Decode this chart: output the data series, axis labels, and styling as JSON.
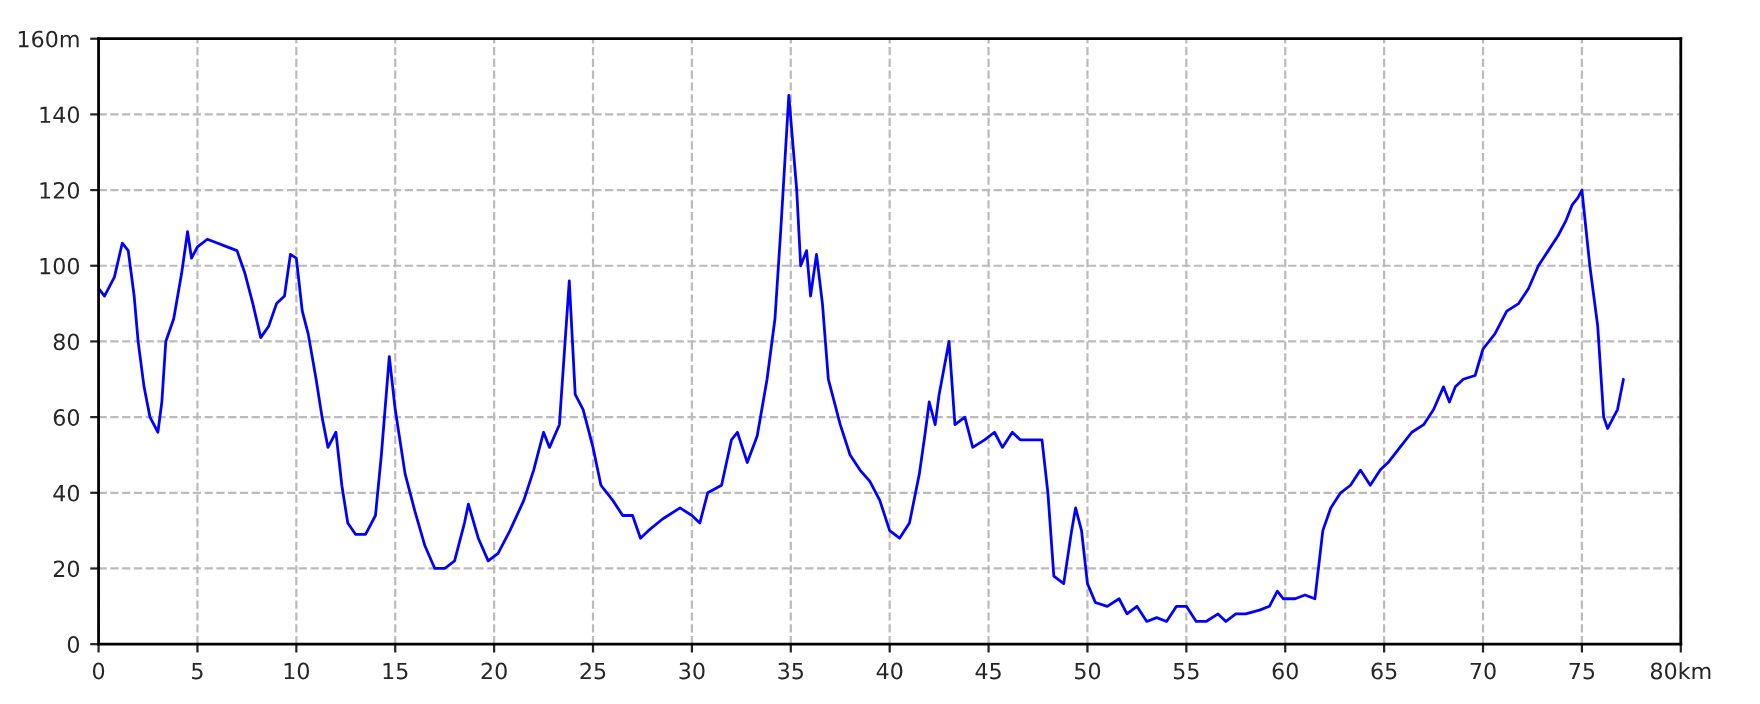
{
  "chart_data": {
    "type": "line",
    "x": [
      0,
      0.3,
      0.8,
      1.2,
      1.5,
      1.8,
      2.0,
      2.3,
      2.6,
      3.0,
      3.2,
      3.4,
      3.8,
      4.2,
      4.5,
      4.7,
      5.0,
      5.5,
      6.0,
      6.5,
      7.0,
      7.4,
      7.8,
      8.2,
      8.6,
      9.0,
      9.4,
      9.7,
      10.0,
      10.3,
      10.6,
      11.0,
      11.3,
      11.6,
      12.0,
      12.3,
      12.6,
      13.0,
      13.5,
      14.0,
      14.3,
      14.7,
      15.0,
      15.5,
      16.0,
      16.5,
      17.0,
      17.5,
      18.0,
      18.5,
      18.7,
      19.2,
      19.7,
      20.2,
      20.8,
      21.5,
      22.0,
      22.5,
      22.8,
      23.3,
      23.8,
      24.1,
      24.5,
      25.0,
      25.4,
      26.0,
      26.5,
      27.0,
      27.4,
      27.8,
      28.5,
      29.4,
      30.0,
      30.4,
      30.8,
      31.5,
      32.0,
      32.3,
      32.8,
      33.3,
      33.8,
      34.2,
      34.5,
      34.9,
      35.3,
      35.5,
      35.8,
      36.0,
      36.3,
      36.6,
      36.9,
      37.5,
      38.0,
      38.5,
      39.0,
      39.5,
      40.0,
      40.5,
      41.0,
      41.5,
      41.8,
      42.0,
      42.3,
      42.5,
      43.0,
      43.3,
      43.8,
      44.2,
      44.8,
      45.3,
      45.7,
      46.2,
      46.6,
      47.2,
      47.7,
      48.0,
      48.3,
      48.8,
      49.2,
      49.4,
      49.7,
      50.0,
      50.4,
      51.0,
      51.6,
      52.0,
      52.5,
      53.0,
      53.5,
      54.0,
      54.5,
      55.0,
      55.5,
      56.0,
      56.6,
      57.0,
      57.5,
      58.0,
      58.7,
      59.2,
      59.6,
      59.9,
      60.5,
      61.0,
      61.5,
      61.9,
      62.3,
      62.8,
      63.3,
      63.8,
      64.3,
      64.8,
      65.2,
      65.8,
      66.4,
      67.0,
      67.5,
      68.0,
      68.3,
      68.6,
      69.0,
      69.6,
      70.0,
      70.6,
      71.2,
      71.8,
      72.3,
      72.8,
      73.3,
      73.8,
      74.2,
      74.5,
      74.8,
      75.0,
      75.4,
      75.8,
      76.1,
      76.3,
      76.8,
      77.1
    ],
    "series": [
      {
        "color": "#0000ff",
        "values": [
          94,
          92,
          97,
          106,
          104,
          92,
          80,
          68,
          60,
          56,
          64,
          80,
          86,
          98,
          109,
          102,
          105,
          107,
          106,
          105,
          104,
          98,
          90,
          81,
          84,
          90,
          92,
          103,
          102,
          88,
          82,
          70,
          60,
          52,
          56,
          42,
          32,
          29,
          29,
          34,
          50,
          76,
          62,
          45,
          35,
          26,
          20,
          20,
          22,
          32,
          37,
          28,
          22,
          24,
          30,
          38,
          46,
          56,
          52,
          58,
          96,
          66,
          62,
          52,
          42,
          38,
          34,
          34,
          28,
          30,
          33,
          36,
          34,
          32,
          40,
          42,
          54,
          56,
          48,
          55,
          70,
          86,
          110,
          145,
          120,
          100,
          104,
          92,
          103,
          90,
          70,
          58,
          50,
          46,
          43,
          38,
          30,
          28,
          32,
          45,
          56,
          64,
          58,
          66,
          80,
          58,
          60,
          52,
          54,
          56,
          52,
          56,
          54,
          54,
          54,
          40,
          18,
          16,
          30,
          36,
          30,
          16,
          11,
          10,
          12,
          8,
          10,
          6,
          7,
          6,
          10,
          10,
          6,
          6,
          8,
          6,
          8,
          8,
          9,
          10,
          14,
          12,
          12,
          13,
          12,
          30,
          36,
          40,
          42,
          46,
          42,
          46,
          48,
          52,
          56,
          58,
          62,
          68,
          64,
          68,
          70,
          71,
          78,
          82,
          88,
          90,
          94,
          100,
          104,
          108,
          112,
          116,
          118,
          120,
          100,
          84,
          60,
          57,
          62,
          70
        ]
      }
    ],
    "xlim": [
      0,
      80
    ],
    "ylim": [
      0,
      160
    ],
    "xticks": [
      0,
      5,
      10,
      15,
      20,
      25,
      30,
      35,
      40,
      45,
      50,
      55,
      60,
      65,
      70,
      75,
      {
        "value": 80,
        "label": "80km"
      }
    ],
    "yticks": [
      0,
      20,
      40,
      60,
      80,
      100,
      120,
      140,
      {
        "value": 160,
        "label": "160m"
      }
    ],
    "grid": true,
    "marker": "none",
    "line_style": "solid"
  }
}
